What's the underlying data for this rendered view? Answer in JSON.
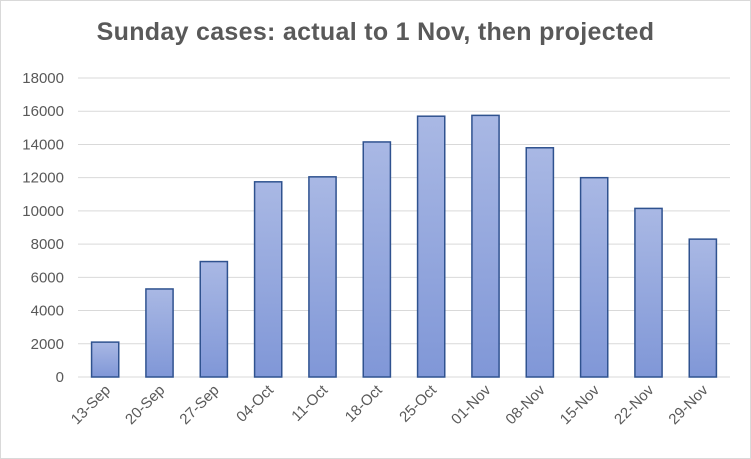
{
  "chart_data": {
    "type": "bar",
    "title": "Sunday cases: actual to 1 Nov, then projected",
    "xlabel": "",
    "ylabel": "",
    "categories": [
      "13-Sep",
      "20-Sep",
      "27-Sep",
      "04-Oct",
      "11-Oct",
      "18-Oct",
      "25-Oct",
      "01-Nov",
      "08-Nov",
      "15-Nov",
      "22-Nov",
      "29-Nov"
    ],
    "values": [
      2100,
      5300,
      6950,
      11750,
      12050,
      14150,
      15700,
      15750,
      13800,
      12000,
      10150,
      8300
    ],
    "ylim": [
      0,
      18000
    ],
    "yticks": [
      0,
      2000,
      4000,
      6000,
      8000,
      10000,
      12000,
      14000,
      16000,
      18000
    ],
    "grid": true,
    "legend": "none",
    "colors": {
      "bar_top": "#a9b8e4",
      "bar_bottom": "#8097d7",
      "bar_border": "#2f528f",
      "grid": "#d9d9d9",
      "text": "#595959"
    }
  }
}
